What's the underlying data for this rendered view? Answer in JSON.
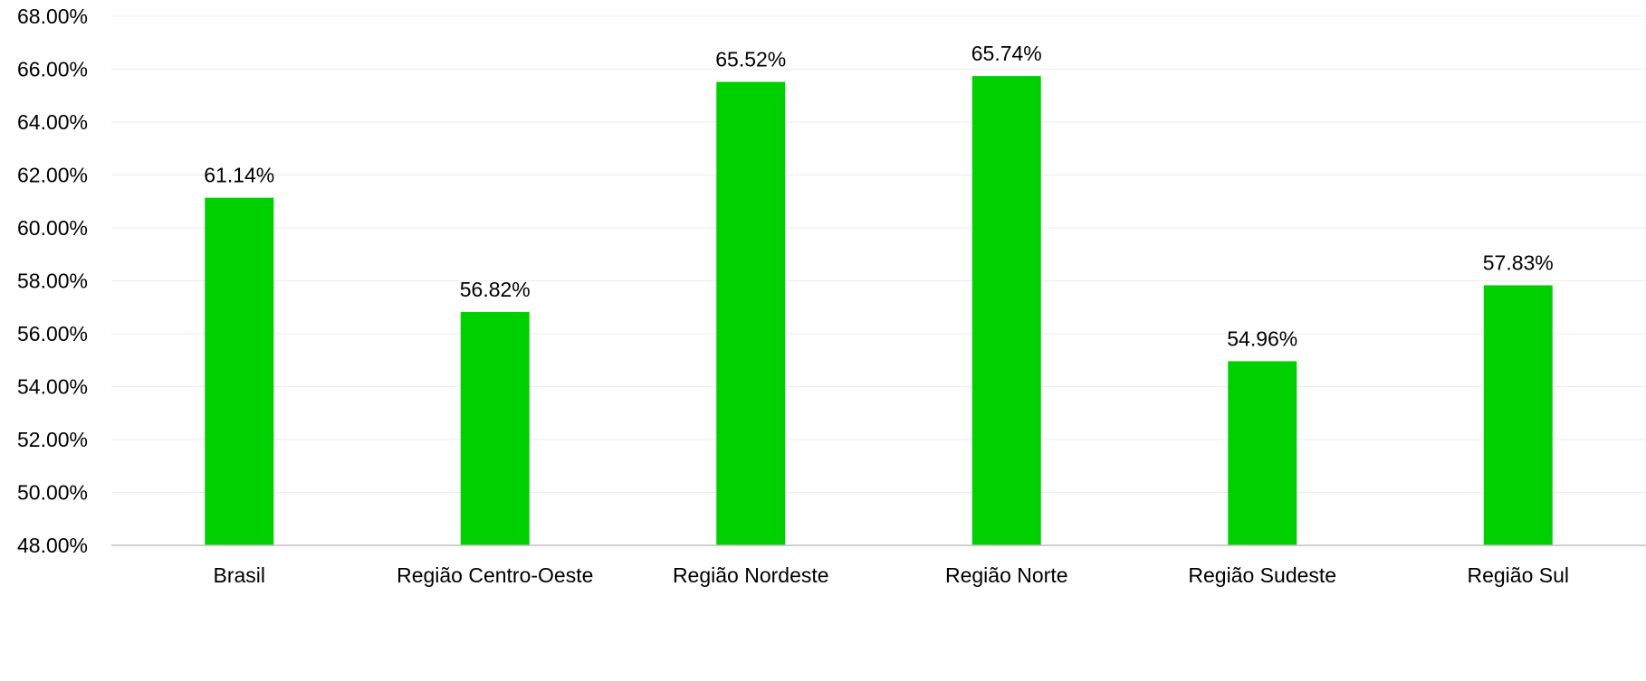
{
  "chart_data": {
    "type": "bar",
    "categories": [
      "Brasil",
      "Região Centro-Oeste",
      "Região Nordeste",
      "Região Norte",
      "Região Sudeste",
      "Região Sul"
    ],
    "series": [
      {
        "values": [
          61.14,
          56.82,
          65.52,
          65.74,
          54.96,
          57.83
        ],
        "labels": [
          "61.14%",
          "56.82%",
          "65.52%",
          "65.74%",
          "54.96%",
          "57.83%"
        ],
        "color": "#00d000"
      }
    ],
    "ylim": [
      48,
      68
    ],
    "yticks": [
      48,
      50,
      52,
      54,
      56,
      58,
      60,
      62,
      64,
      66,
      68
    ],
    "ytick_labels": [
      "48.00%",
      "50.00%",
      "52.00%",
      "54.00%",
      "56.00%",
      "58.00%",
      "60.00%",
      "62.00%",
      "64.00%",
      "66.00%",
      "68.00%"
    ],
    "grid": true,
    "legend": "none",
    "title": "",
    "xlabel": "",
    "ylabel": ""
  }
}
